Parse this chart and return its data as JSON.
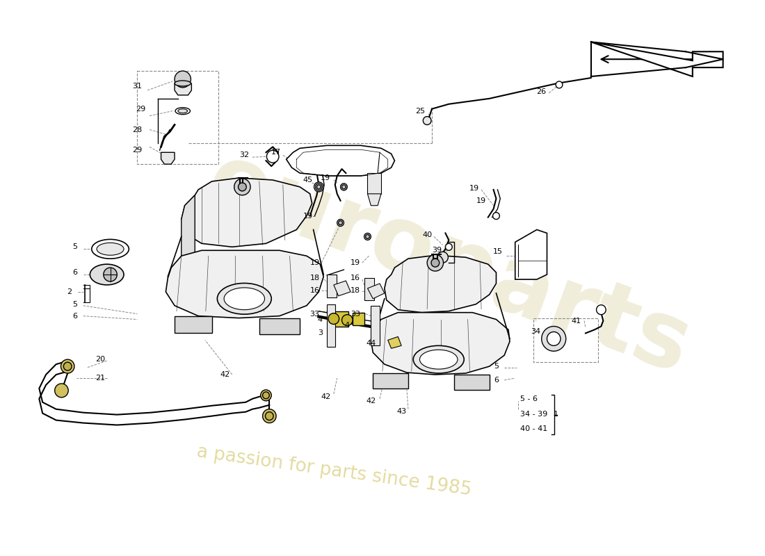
{
  "bg_color": "#ffffff",
  "line_color": "#000000",
  "dashed_color": "#888888",
  "watermark_color1": "#d4cfa0",
  "watermark_color2": "#c8bf8a",
  "fig_width": 11.0,
  "fig_height": 8.0,
  "dpi": 100
}
